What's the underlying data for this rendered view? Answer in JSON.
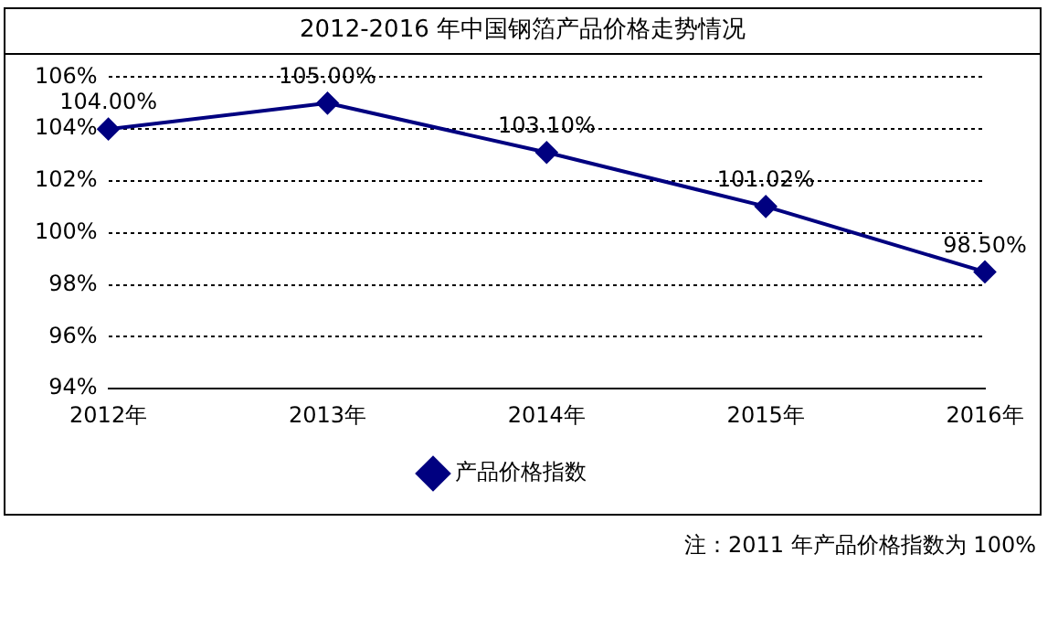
{
  "chart_data": {
    "type": "line",
    "title": "2012-2016 年中国钢箔产品价格走势情况",
    "categories": [
      "2012年",
      "2013年",
      "2014年",
      "2015年",
      "2016年"
    ],
    "series": [
      {
        "name": "产品价格指数",
        "color": "#000080",
        "values": [
          104.0,
          105.0,
          103.1,
          101.02,
          98.5
        ],
        "value_labels": [
          "104.00%",
          "105.00%",
          "103.10%",
          "101.02%",
          "98.50%"
        ]
      }
    ],
    "ylim": [
      94,
      106
    ],
    "yticks": [
      {
        "value": 94,
        "label": "94%"
      },
      {
        "value": 96,
        "label": "96%"
      },
      {
        "value": 98,
        "label": "98%"
      },
      {
        "value": 100,
        "label": "100%"
      },
      {
        "value": 102,
        "label": "102%"
      },
      {
        "value": 104,
        "label": "104%"
      },
      {
        "value": 106,
        "label": "106%"
      }
    ],
    "grid": "y",
    "legend": "bottom",
    "marker": "diamond",
    "line_style": "solid",
    "annotations": [
      "注：2011 年产品价格指数为 100%"
    ]
  }
}
